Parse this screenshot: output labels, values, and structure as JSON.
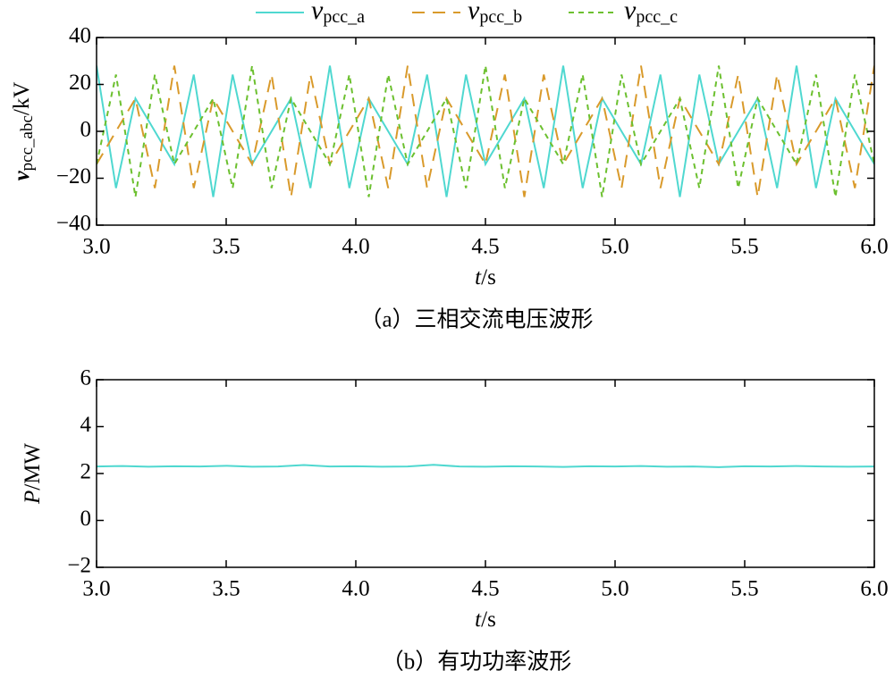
{
  "chart_data": [
    {
      "type": "line",
      "title": "（a）三相交流电压波形",
      "xlabel": "t/s",
      "ylabel": "vpcc_abc/kV",
      "x": [
        3.0,
        3.075,
        3.15,
        3.225,
        3.3,
        3.375,
        3.45,
        3.525,
        3.6,
        3.675,
        3.75,
        3.825,
        3.9,
        3.975,
        4.05,
        4.125,
        4.2,
        4.275,
        4.35,
        4.425,
        4.5,
        4.575,
        4.65,
        4.725,
        4.8,
        4.875,
        4.95,
        5.025,
        5.1,
        5.175,
        5.25,
        5.325,
        5.4,
        5.475,
        5.55,
        5.625,
        5.7,
        5.775,
        5.85,
        5.925,
        6.0
      ],
      "series": [
        {
          "name": "vpcc_a",
          "color": "#4fd8d0",
          "linestyle": "solid",
          "values": [
            28,
            -24.2,
            14,
            0,
            -14,
            24.2,
            -28,
            24.2,
            -14,
            0,
            14,
            -24.2,
            28,
            -24.2,
            14,
            0,
            -14,
            24.2,
            -28,
            24.2,
            -14,
            0,
            14,
            -24.2,
            28,
            -24.2,
            14,
            0,
            -14,
            24.2,
            -28,
            24.2,
            -14,
            0,
            14,
            -24.2,
            28,
            -24.2,
            14,
            0,
            -14
          ]
        },
        {
          "name": "vpcc_b",
          "color": "#d99a2b",
          "linestyle": "dashed",
          "values": [
            -14,
            0,
            14,
            -24.2,
            28,
            -24.2,
            14,
            0,
            -14,
            24.2,
            -28,
            24.2,
            -14,
            0,
            14,
            -24.2,
            28,
            -24.2,
            14,
            0,
            -14,
            24.2,
            -28,
            24.2,
            -14,
            0,
            14,
            -24.2,
            28,
            -24.2,
            14,
            0,
            -14,
            24.2,
            -28,
            24.2,
            -14,
            0,
            14,
            -24.2,
            28
          ]
        },
        {
          "name": "vpcc_c",
          "color": "#6cc02f",
          "linestyle": "dotted",
          "values": [
            -14,
            24.2,
            -28,
            24.2,
            -14,
            0,
            14,
            -24.2,
            28,
            -24.2,
            14,
            0,
            -14,
            24.2,
            -28,
            24.2,
            -14,
            0,
            14,
            -24.2,
            28,
            -24.2,
            14,
            0,
            -14,
            24.2,
            -28,
            24.2,
            -14,
            0,
            14,
            -24.2,
            28,
            -24.2,
            14,
            0,
            -14,
            24.2,
            -28,
            24.2,
            -14
          ]
        }
      ],
      "xlim": [
        3,
        6
      ],
      "ylim": [
        -40,
        40
      ],
      "xticks": [
        {
          "value": 3,
          "label": "3.0"
        },
        3.5,
        {
          "value": 4,
          "label": "4.0"
        },
        4.5,
        {
          "value": 5,
          "label": "5.0"
        },
        5.5,
        {
          "value": 6,
          "label": "6.0"
        }
      ],
      "yticks": [
        -40,
        -20,
        0,
        20,
        40
      ]
    },
    {
      "type": "line",
      "title": "（b）有功功率波形",
      "xlabel": "t/s",
      "ylabel": "P/MW",
      "color": "#4fd8d0",
      "x": [
        3.0,
        3.1,
        3.2,
        3.3,
        3.4,
        3.5,
        3.6,
        3.7,
        3.8,
        3.9,
        4.0,
        4.1,
        4.2,
        4.3,
        4.4,
        4.5,
        4.6,
        4.7,
        4.8,
        4.9,
        5.0,
        5.1,
        5.2,
        5.3,
        5.4,
        5.5,
        5.6,
        5.7,
        5.8,
        5.9,
        6.0
      ],
      "values": [
        2.3,
        2.32,
        2.29,
        2.31,
        2.3,
        2.33,
        2.29,
        2.3,
        2.36,
        2.3,
        2.31,
        2.29,
        2.3,
        2.37,
        2.3,
        2.29,
        2.31,
        2.3,
        2.28,
        2.31,
        2.3,
        2.32,
        2.29,
        2.3,
        2.27,
        2.31,
        2.3,
        2.32,
        2.3,
        2.29,
        2.3
      ],
      "xlim": [
        3,
        6
      ],
      "ylim": [
        -2,
        6
      ],
      "xticks": [
        {
          "value": 3,
          "label": "3.0"
        },
        3.5,
        {
          "value": 4,
          "label": "4.0"
        },
        4.5,
        {
          "value": 5,
          "label": "5.0"
        },
        5.5,
        {
          "value": 6,
          "label": "6.0"
        }
      ],
      "yticks": [
        -2,
        0,
        2,
        4,
        6
      ]
    }
  ]
}
